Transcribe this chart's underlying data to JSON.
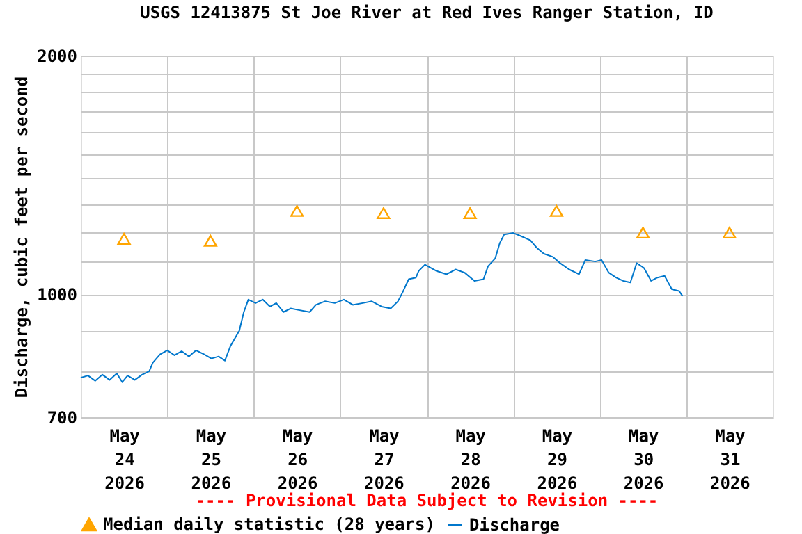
{
  "chart_data": {
    "type": "line",
    "title": "USGS 12413875 St Joe River at Red Ives Ranger Station, ID",
    "ylabel": "Discharge, cubic feet per second",
    "annotations": [
      "---- Provisional Data Subject to Revision ----"
    ],
    "log": true,
    "grid": true,
    "legend": "bottom",
    "xlim": [
      "2026-05-24T00:00",
      "2026-06-01T00:00"
    ],
    "xticks": [
      {
        "value": "2026-05-24T12:00",
        "label": "May\n24\n2026"
      },
      {
        "value": "2026-05-25T00:00",
        "label": null
      },
      {
        "value": "2026-05-25T12:00",
        "label": "May\n25\n2026"
      },
      {
        "value": "2026-05-26T00:00",
        "label": null
      },
      {
        "value": "2026-05-26T12:00",
        "label": "May\n26\n2026"
      },
      {
        "value": "2026-05-27T00:00",
        "label": null
      },
      {
        "value": "2026-05-27T12:00",
        "label": "May\n27\n2026"
      },
      {
        "value": "2026-05-28T00:00",
        "label": null
      },
      {
        "value": "2026-05-28T12:00",
        "label": "May\n28\n2026"
      },
      {
        "value": "2026-05-29T00:00",
        "label": null
      },
      {
        "value": "2026-05-29T12:00",
        "label": "May\n29\n2026"
      },
      {
        "value": "2026-05-30T00:00",
        "label": null
      },
      {
        "value": "2026-05-30T12:00",
        "label": "May\n30\n2026"
      },
      {
        "value": "2026-05-31T00:00",
        "label": null
      },
      {
        "value": "2026-05-31T12:00",
        "label": "May\n31\n2026"
      }
    ],
    "ylim": [
      700,
      2000
    ],
    "yticks": [
      700,
      {
        "value": 800,
        "label": null
      },
      {
        "value": 900,
        "label": null
      },
      1000,
      {
        "value": 1100,
        "label": null
      },
      {
        "value": 1200,
        "label": null
      },
      {
        "value": 1300,
        "label": null
      },
      {
        "value": 1400,
        "label": null
      },
      {
        "value": 1500,
        "label": null
      },
      {
        "value": 1600,
        "label": null
      },
      {
        "value": 1700,
        "label": null
      },
      {
        "value": 1800,
        "label": null
      },
      {
        "value": 1900,
        "label": null
      },
      2000
    ],
    "series": [
      {
        "name": "Median daily statistic (28 years)",
        "type": "scatter",
        "marker": "triangle",
        "color": "#ffa500",
        "x": [
          "2026-05-24T12:00",
          "2026-05-25T12:00",
          "2026-05-26T12:00",
          "2026-05-27T12:00",
          "2026-05-28T12:00",
          "2026-05-29T12:00",
          "2026-05-30T12:00",
          "2026-05-31T12:00"
        ],
        "values": [
          1175,
          1168,
          1274,
          1266,
          1266,
          1274,
          1196,
          1196
        ]
      },
      {
        "name": "Discharge",
        "type": "line",
        "marker": "none",
        "line_style": "solid",
        "color": "#0077cc",
        "x": [
          "2026-05-24T00:00",
          "2026-05-24T02:00",
          "2026-05-24T04:00",
          "2026-05-24T06:00",
          "2026-05-24T08:00",
          "2026-05-24T10:00",
          "2026-05-24T11:30",
          "2026-05-24T13:00",
          "2026-05-24T15:00",
          "2026-05-24T17:00",
          "2026-05-24T19:00",
          "2026-05-24T20:00",
          "2026-05-24T22:00",
          "2026-05-25T00:00",
          "2026-05-25T02:00",
          "2026-05-25T04:00",
          "2026-05-25T06:00",
          "2026-05-25T08:00",
          "2026-05-25T10:15",
          "2026-05-25T12:15",
          "2026-05-25T14:15",
          "2026-05-25T16:00",
          "2026-05-25T17:30",
          "2026-05-25T18:45",
          "2026-05-25T20:00",
          "2026-05-25T21:15",
          "2026-05-25T22:30",
          "2026-05-26T00:30",
          "2026-05-26T02:30",
          "2026-05-26T04:30",
          "2026-05-26T06:15",
          "2026-05-26T08:15",
          "2026-05-26T10:15",
          "2026-05-26T12:45",
          "2026-05-26T15:30",
          "2026-05-26T17:15",
          "2026-05-26T19:45",
          "2026-05-26T22:30",
          "2026-05-27T01:00",
          "2026-05-27T03:30",
          "2026-05-27T06:15",
          "2026-05-27T08:45",
          "2026-05-27T11:30",
          "2026-05-27T14:00",
          "2026-05-27T16:00",
          "2026-05-27T17:15",
          "2026-05-27T19:00",
          "2026-05-27T21:00",
          "2026-05-27T21:45",
          "2026-05-27T23:30",
          "2026-05-28T02:45",
          "2026-05-28T05:30",
          "2026-05-28T08:00",
          "2026-05-28T10:30",
          "2026-05-28T13:15",
          "2026-05-28T15:45",
          "2026-05-28T17:00",
          "2026-05-28T19:00",
          "2026-05-28T20:15",
          "2026-05-28T21:30",
          "2026-05-29T00:00",
          "2026-05-29T02:00",
          "2026-05-29T04:45",
          "2026-05-29T06:30",
          "2026-05-29T08:30",
          "2026-05-29T11:00",
          "2026-05-29T13:00",
          "2026-05-29T15:30",
          "2026-05-29T18:15",
          "2026-05-29T20:00",
          "2026-05-29T22:45",
          "2026-05-30T00:30",
          "2026-05-30T02:30",
          "2026-05-30T04:30",
          "2026-05-30T06:30",
          "2026-05-30T08:30",
          "2026-05-30T10:15",
          "2026-05-30T12:15",
          "2026-05-30T14:15",
          "2026-05-30T16:00",
          "2026-05-30T18:00",
          "2026-05-30T20:00",
          "2026-05-30T22:00",
          "2026-05-30T23:00"
        ],
        "values": [
          785,
          790,
          778,
          792,
          780,
          795,
          775,
          790,
          780,
          792,
          800,
          820,
          840,
          850,
          838,
          848,
          835,
          850,
          840,
          830,
          835,
          825,
          860,
          880,
          900,
          950,
          985,
          975,
          985,
          965,
          975,
          950,
          960,
          955,
          950,
          970,
          980,
          975,
          985,
          970,
          975,
          980,
          965,
          960,
          980,
          1005,
          1045,
          1050,
          1070,
          1090,
          1070,
          1060,
          1075,
          1065,
          1040,
          1045,
          1085,
          1110,
          1160,
          1190,
          1195,
          1185,
          1170,
          1145,
          1125,
          1115,
          1095,
          1075,
          1060,
          1105,
          1100,
          1105,
          1065,
          1050,
          1040,
          1035,
          1095,
          1080,
          1040,
          1050,
          1055,
          1015,
          1010,
          995
        ]
      }
    ]
  }
}
